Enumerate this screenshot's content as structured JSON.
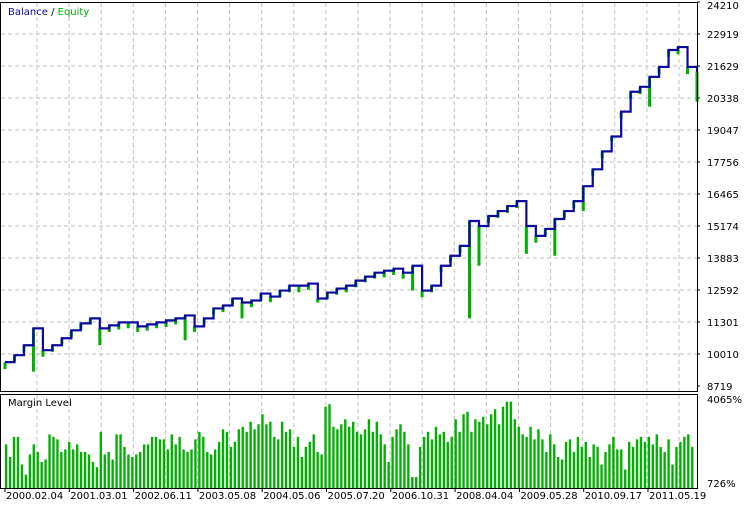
{
  "colors": {
    "balance": "#0a0a9c",
    "equity": "#00b000",
    "margin": "#00b000",
    "grid": "#c0c0c0"
  },
  "chart_data": [
    {
      "type": "line",
      "legend": {
        "balance_label": "Balance",
        "separator": " / ",
        "equity_label": "Equity",
        "placement": "top-left"
      },
      "ylim": [
        8719,
        24210
      ],
      "yticks": [
        "24210",
        "22919",
        "21629",
        "20338",
        "19047",
        "17756",
        "16465",
        "15174",
        "13883",
        "12592",
        "11301",
        "10010",
        "8719"
      ],
      "grid": true,
      "series": [
        {
          "name": "Balance",
          "values": [
            9681,
            9962,
            10363,
            11045,
            10163,
            10363,
            10644,
            10965,
            11245,
            11446,
            11045,
            11165,
            11285,
            11285,
            11125,
            11205,
            11285,
            11366,
            11446,
            11566,
            11125,
            11446,
            11847,
            11967,
            12248,
            12087,
            12168,
            12448,
            12328,
            12569,
            12769,
            12769,
            12849,
            12248,
            12488,
            12649,
            12769,
            12970,
            13130,
            13290,
            13371,
            13451,
            13290,
            13571,
            12569,
            12769,
            13571,
            13972,
            14373,
            15376,
            15175,
            15576,
            15777,
            15977,
            16178,
            15175,
            14774,
            15055,
            15456,
            15777,
            16178,
            16779,
            17461,
            18183,
            18784,
            19787,
            20589,
            20789,
            21190,
            21591,
            22273,
            22393,
            21591,
            21391
          ]
        },
        {
          "name": "Equity",
          "values": [
            9400,
            9700,
            10100,
            9300,
            9900,
            10100,
            10400,
            10700,
            11000,
            11200,
            10363,
            10900,
            11000,
            11050,
            10900,
            10950,
            11050,
            11100,
            11200,
            10563,
            10900,
            11200,
            11600,
            11700,
            12000,
            11446,
            11900,
            12200,
            12100,
            12300,
            12500,
            12500,
            12600,
            12087,
            12250,
            12400,
            12500,
            12700,
            12900,
            13050,
            13100,
            13200,
            13050,
            12569,
            12300,
            12500,
            13300,
            13700,
            14100,
            11446,
            13571,
            15300,
            15500,
            15700,
            15900,
            14052,
            14500,
            14800,
            13972,
            15500,
            15900,
            15777,
            17200,
            17900,
            18583,
            19500,
            20300,
            20500,
            19987,
            21300,
            22000,
            22100,
            21300,
            20188
          ]
        }
      ]
    },
    {
      "type": "bar",
      "title": "Margin Level",
      "ylim": [
        726,
        4065
      ],
      "yticks": [
        "4065%",
        "726%"
      ],
      "values": [
        2300,
        1800,
        2600,
        2600,
        1500,
        1100,
        1900,
        2300,
        2000,
        1600,
        1700,
        2700,
        2600,
        2500,
        2000,
        2100,
        2400,
        2100,
        2300,
        2000,
        2000,
        1900,
        1600,
        1400,
        2800,
        1900,
        2000,
        1700,
        2700,
        2700,
        2200,
        1900,
        1800,
        1900,
        2000,
        2300,
        2300,
        2600,
        2600,
        2500,
        2500,
        2100,
        2700,
        2300,
        2600,
        2100,
        2000,
        2100,
        2500,
        2800,
        2600,
        2000,
        1900,
        2100,
        2400,
        2900,
        2800,
        2200,
        2400,
        2900,
        3000,
        2800,
        3200,
        2900,
        3100,
        3500,
        3100,
        3200,
        2600,
        2500,
        3200,
        2800,
        2900,
        2200,
        2600,
        1800,
        2200,
        2400,
        2700,
        2000,
        1900,
        3800,
        3900,
        3000,
        2900,
        3100,
        3300,
        3000,
        3200,
        2800,
        2700,
        2900,
        3300,
        2800,
        3200,
        2700,
        2300,
        1600,
        2600,
        2900,
        3100,
        2800,
        2300,
        1000,
        1000,
        2200,
        2600,
        2800,
        2500,
        3000,
        2700,
        2800,
        2400,
        2600,
        3300,
        2800,
        3500,
        3600,
        2800,
        3300,
        3200,
        3400,
        3100,
        3500,
        3700,
        3100,
        3800,
        4000,
        4000,
        3300,
        3000,
        2700,
        2600,
        3000,
        2500,
        2900,
        2500,
        2000,
        2700,
        2300,
        1800,
        1700,
        2400,
        2500,
        2000,
        2600,
        2200,
        2400,
        1800,
        2300,
        2200,
        1500,
        2000,
        2300,
        2600,
        2100,
        2100,
        1300,
        2400,
        2200,
        2500,
        2600,
        2400,
        2600,
        2300,
        2700,
        2200,
        2000,
        2500,
        1500,
        2200,
        2400,
        2600,
        2700,
        2200
      ]
    }
  ],
  "xticks": [
    "2000.02.04",
    "2001.03.01",
    "2002.06.11",
    "2003.05.08",
    "2004.05.06",
    "2005.07.20",
    "2006.10.31",
    "2008.04.04",
    "2009.05.28",
    "2010.09.17",
    "2011.05.19"
  ]
}
